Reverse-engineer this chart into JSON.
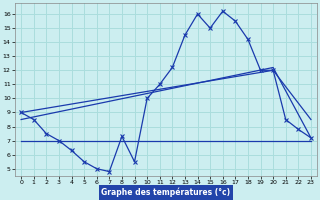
{
  "title": "Graphe des températures (°c)",
  "bg_color": "#cceef0",
  "grid_color": "#aadddd",
  "line_color": "#1a3aad",
  "x_ticks": [
    0,
    1,
    2,
    3,
    4,
    5,
    6,
    7,
    8,
    9,
    10,
    11,
    12,
    13,
    14,
    15,
    16,
    17,
    18,
    19,
    20,
    21,
    22,
    23
  ],
  "y_ticks": [
    5,
    6,
    7,
    8,
    9,
    10,
    11,
    12,
    13,
    14,
    15,
    16
  ],
  "ylim": [
    4.5,
    16.8
  ],
  "xlim": [
    -0.5,
    23.5
  ],
  "temp_x": [
    0,
    1,
    2,
    3,
    4,
    5,
    6,
    7,
    8,
    9,
    10,
    11,
    12,
    13,
    14,
    15,
    16,
    17,
    18,
    19,
    20,
    21,
    22,
    23
  ],
  "temp_y": [
    9.0,
    8.5,
    7.5,
    7.0,
    6.3,
    5.5,
    5.0,
    4.8,
    7.3,
    5.5,
    10.0,
    11.0,
    12.2,
    14.5,
    16.0,
    15.0,
    16.2,
    15.5,
    14.2,
    12.0,
    12.0,
    8.5,
    7.8,
    7.2
  ],
  "trend1_x": [
    0,
    20,
    23
  ],
  "trend1_y": [
    9.0,
    12.0,
    8.5
  ],
  "trend2_x": [
    0,
    20,
    23
  ],
  "trend2_y": [
    8.5,
    12.2,
    7.2
  ],
  "flat_x": [
    0,
    3,
    7,
    13,
    20,
    21,
    23
  ],
  "flat_y": [
    7.0,
    7.0,
    7.0,
    7.0,
    7.0,
    7.0,
    7.0
  ]
}
